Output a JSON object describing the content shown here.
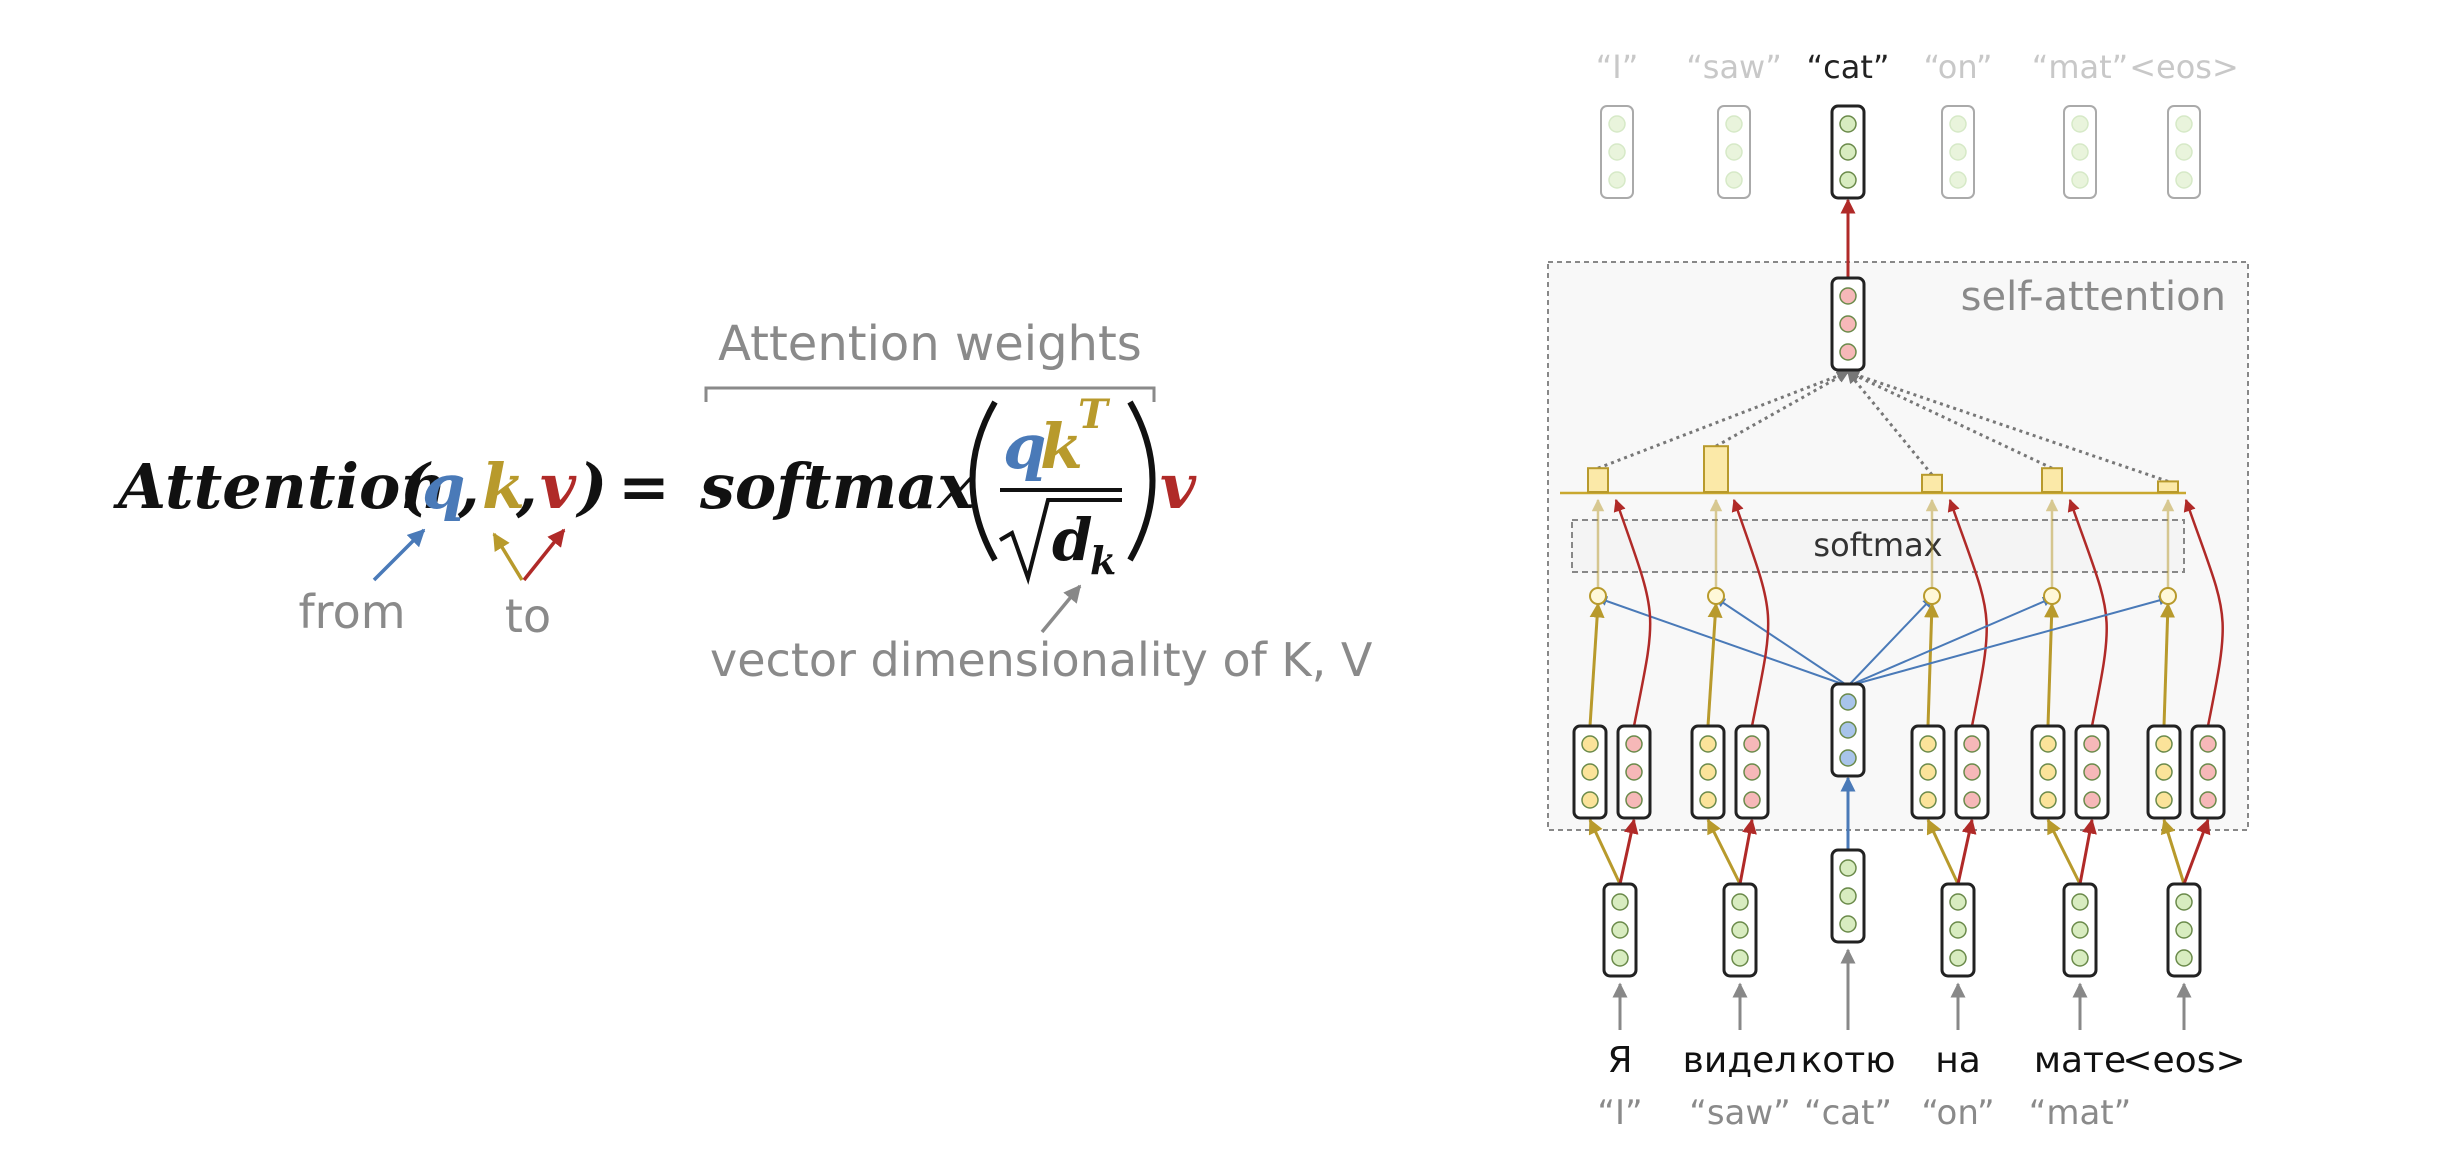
{
  "formula": {
    "lhs": "Attention",
    "open_paren": "(",
    "q": "q",
    "comma1": ",",
    "k": "k",
    "comma2": ",",
    "v": "v",
    "close_paren": ")",
    "equals": "=",
    "softmax": "softmax",
    "num_q": "q",
    "num_k": "k",
    "num_T": "T",
    "den_d": "d",
    "den_sub": "k",
    "trailing_v": "v"
  },
  "annotations": {
    "attention_weights": "Attention weights",
    "from": "from",
    "to": "to",
    "dimensionality": "vector dimensionality of K, V"
  },
  "diagram": {
    "title": "self-attention",
    "softmax_label": "softmax",
    "top_labels": [
      "“I”",
      "“saw”",
      "“cat”",
      "“on”",
      "“mat”",
      "<eos>"
    ],
    "input_words": [
      "Я",
      "видел",
      "котю",
      "на",
      "мате",
      "<eos>"
    ],
    "input_translations": [
      "“I”",
      "“saw”",
      "“cat”",
      "“on”",
      "“mat”"
    ],
    "active_token_index": 2,
    "attention_bar_levels": [
      0.45,
      0.95,
      0.3,
      0.45,
      0.15
    ]
  },
  "colors": {
    "query_blue": "#4a7ab8",
    "key_gold": "#b89a2c",
    "value_red": "#b02a28",
    "label_gray": "#8a8a8a",
    "bar_fill": "#fbe9a8",
    "green_cell": "#d8ecc0"
  }
}
